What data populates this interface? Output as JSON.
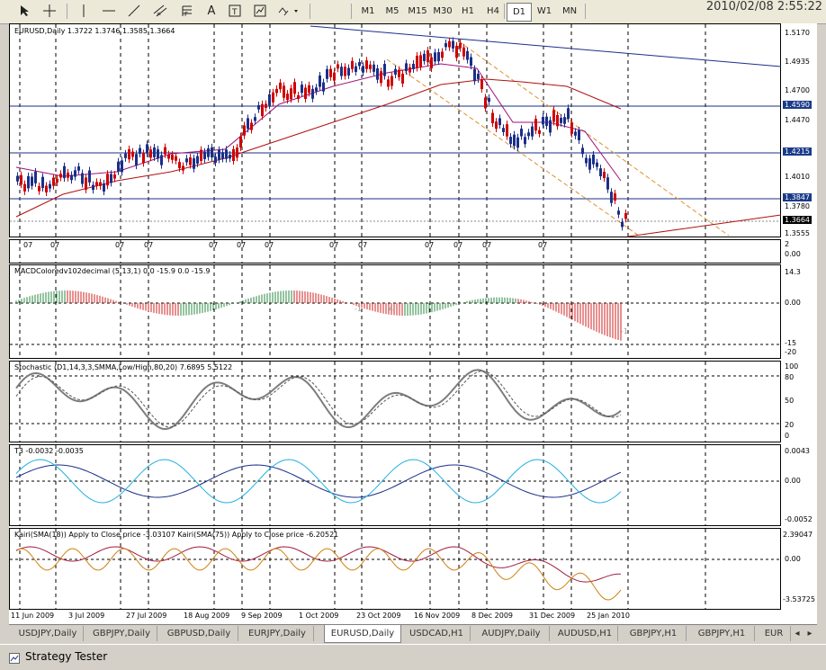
{
  "toolbar": {
    "timeframes": [
      "M1",
      "M5",
      "M15",
      "M30",
      "H1",
      "H4",
      "D1",
      "W1",
      "MN"
    ],
    "active_timeframe": "D1",
    "datetime": "2010/02/08  2:55:22"
  },
  "main_chart": {
    "header": "EURUSD,Daily  1.3722 1.3746 1.3585 1.3664",
    "price_labels": [
      "1.5170",
      "1.4935",
      "1.4700",
      "1.4590",
      "1.4470",
      "1.4215",
      "1.4010",
      "1.3847",
      "1.3780",
      "1.3664",
      "1.3555"
    ],
    "boxed_prices": [
      "1.4590",
      "1.4215",
      "1.3847"
    ],
    "current_price": "1.3664",
    "markers": [
      "07",
      "07",
      "07",
      "07",
      "07",
      "07",
      "07",
      "07",
      "07",
      "07",
      "07",
      "07",
      "07"
    ]
  },
  "macd": {
    "header": "MACDColoredv102decimal (5,13,1) 0.0 -15.9 0.0 -15.9",
    "scale": [
      "14.3",
      "0.00",
      "-15",
      "-20"
    ],
    "sub_scale": [
      "2",
      "0.00"
    ],
    "annotations": [
      "-1",
      "4",
      "-1"
    ]
  },
  "stochastic": {
    "header": "Stochastic (D1,14,3,3,SMMA,Low/High,80,20) 7.6895 5.5122",
    "scale": [
      "100",
      "80",
      "50",
      "20",
      "0"
    ]
  },
  "t3": {
    "header": "T3 -0.0032 -0.0035",
    "scale": [
      "0.0043",
      "0.00",
      "-0.0052"
    ]
  },
  "kairi": {
    "header": "Kairi(SMA(18)) Apply to Close price -3.03107  Kairi(SMA(75)) Apply to Close price -6.20521",
    "scale": [
      "2.39047",
      "0.00",
      "-3.53725"
    ]
  },
  "x_axis": [
    "11 Jun 2009",
    "3 Jul 2009",
    "27 Jul 2009",
    "18 Aug 2009",
    "9 Sep 2009",
    "1 Oct 2009",
    "23 Oct 2009",
    "16 Nov 2009",
    "8 Dec 2009",
    "31 Dec 2009",
    "25 Jan 2010"
  ],
  "tabs": [
    "USDJPY,Daily",
    "GBPJPY,Daily",
    "GBPUSD,Daily",
    "EURJPY,Daily",
    "EURUSD,Daily",
    "USDCAD,H1",
    "AUDJPY,Daily",
    "AUDUSD,H1",
    "GBPJPY,H1",
    "GBPJPY,H1",
    "EUR"
  ],
  "active_tab": "EURUSD,Daily",
  "status": {
    "label": "Strategy Tester"
  },
  "colors": {
    "bull": "#1a2f8a",
    "bear": "#d00000",
    "ma_red": "#b01010",
    "trend_blue": "#1a2f8a",
    "channel": "#e09030",
    "stoch": "#7d7d7d",
    "stoch_hi": "#2a8a20",
    "stoch_lo": "#d00000",
    "macd_up": "#2a8a40",
    "macd_dn": "#d02020",
    "t3_a": "#1a2f8a",
    "t3_b": "#20b0e0",
    "kairi_a": "#d08010",
    "kairi_b": "#a02040"
  }
}
